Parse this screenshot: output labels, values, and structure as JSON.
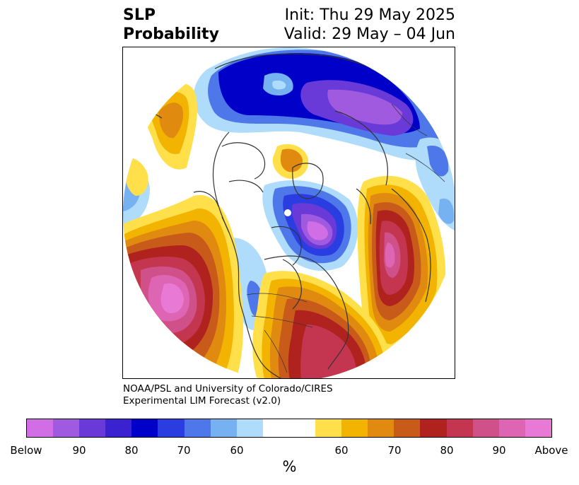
{
  "header": {
    "title_line1": "SLP",
    "title_line2": "Probability",
    "init": "Init: Thu 29 May 2025",
    "valid": "Valid: 29 May – 04 Jun"
  },
  "credit": {
    "line1": "NOAA/PSL and University of Colorado/CIRES",
    "line2": "Experimental LIM Forecast (v2.0)"
  },
  "colorbar": {
    "colors": [
      "#d16ee6",
      "#a05ae0",
      "#6a3ad8",
      "#3b22d0",
      "#0000c8",
      "#2a3de0",
      "#4e78ea",
      "#76b2f2",
      "#aedcfa",
      "#ffffff",
      "#ffffff",
      "#ffe04a",
      "#f2b400",
      "#e08a10",
      "#c85a1a",
      "#b0221e",
      "#c43650",
      "#d0508a",
      "#de64b4",
      "#e87ad6"
    ],
    "tick_labels": [
      "Below",
      "90",
      "80",
      "70",
      "60",
      "60",
      "70",
      "80",
      "90",
      "Above"
    ],
    "unit": "%"
  },
  "map": {
    "projection": "north polar stereographic",
    "field": "SLP probability"
  }
}
